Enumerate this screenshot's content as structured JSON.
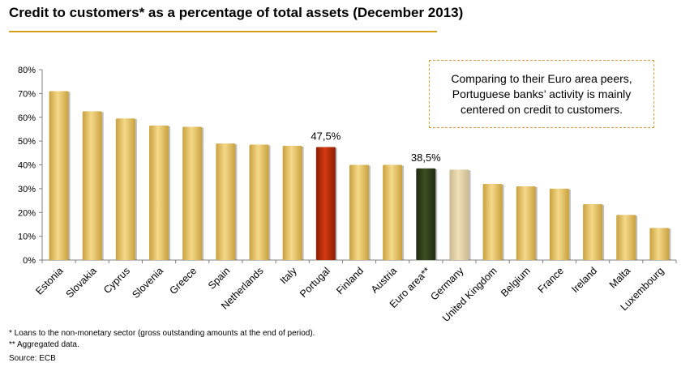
{
  "title": "Credit to customers* as a percentage of total assets (December 2013)",
  "callout": "Comparing to their Euro area peers, Portuguese banks’ activity is mainly centered on credit to customers.",
  "footnotes": [
    "* Loans to the non-monetary sector (gross outstanding amounts at the end of period).",
    "** Aggregated data."
  ],
  "source": "Source: ECB",
  "colors": {
    "default_bar": "#f5d98a",
    "portugal_bar": "#d43a10",
    "euro_area_bar": "#3d4f22",
    "germany_bar": "#f0e0b8",
    "accent_rule": "#d4a017"
  },
  "chart_data": {
    "type": "bar",
    "categories": [
      "Estonia",
      "Slovakia",
      "Cyprus",
      "Slovenia",
      "Greece",
      "Spain",
      "Netherlands",
      "Italy",
      "Portugal",
      "Finland",
      "Austria",
      "Euro area**",
      "Germany",
      "United Kingdom",
      "Belgium",
      "France",
      "Ireland",
      "Malta",
      "Luxembourg"
    ],
    "values": [
      71,
      62.5,
      59.5,
      56.5,
      56,
      49,
      48.5,
      48,
      47.5,
      40,
      40,
      38.5,
      38,
      32,
      31,
      30,
      23.5,
      19,
      13.5
    ],
    "highlight": {
      "Portugal": "portugal_bar",
      "Euro area**": "euro_area_bar",
      "Germany": "germany_bar"
    },
    "data_labels": {
      "Portugal": "47,5%",
      "Euro area**": "38,5%"
    },
    "yticks": [
      "0%",
      "10%",
      "20%",
      "30%",
      "40%",
      "50%",
      "60%",
      "70%",
      "80%"
    ],
    "ylim": [
      0,
      80
    ],
    "xlabel": "",
    "ylabel": ""
  }
}
